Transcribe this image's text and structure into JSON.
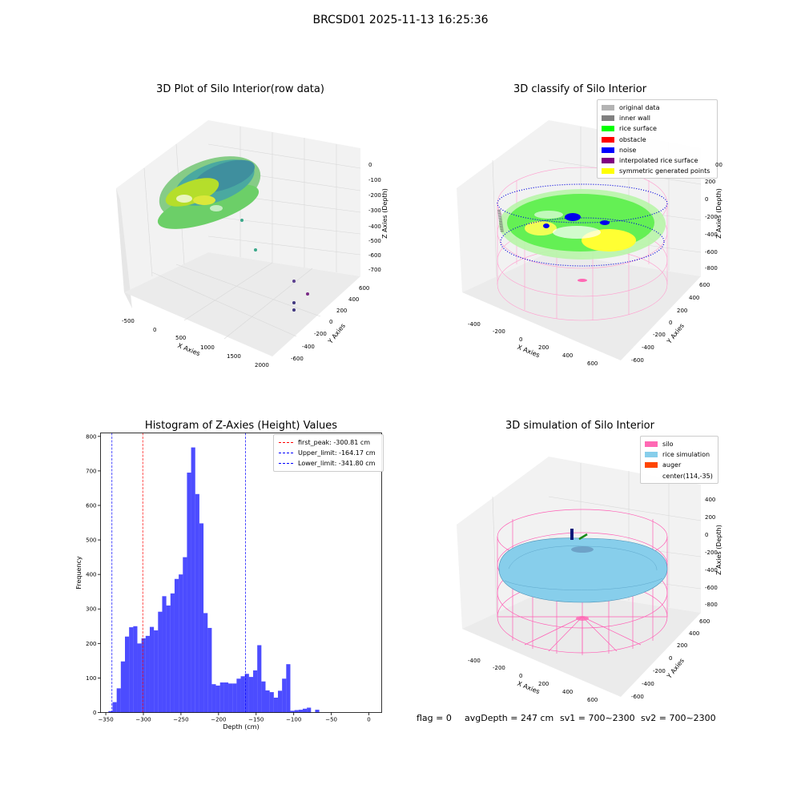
{
  "page": {
    "title": "BRCSD01 2025-11-13 16:25:36"
  },
  "panel1": {
    "title": "3D Plot of Silo Interior(row data)",
    "x_ticks": [
      "-500",
      "0",
      "500",
      "1000",
      "1500",
      "2000"
    ],
    "y_ticks": [
      "-600",
      "-400",
      "-200",
      "0",
      "200",
      "400",
      "600"
    ],
    "z_ticks": [
      "0",
      "-100",
      "-200",
      "-300",
      "-400",
      "-500",
      "-600",
      "-700"
    ],
    "x_label": "X Axies",
    "y_label": "Y Axies",
    "z_label": "Z Axies (Depth)"
  },
  "panel2": {
    "title": "3D classify of Silo Interior",
    "legend": [
      {
        "label": "original data",
        "color": "#b3b3b3"
      },
      {
        "label": "inner wall",
        "color": "#808080"
      },
      {
        "label": "rice surface",
        "color": "#00ff00"
      },
      {
        "label": "obstacle",
        "color": "#ff0000"
      },
      {
        "label": "noise",
        "color": "#0000ff"
      },
      {
        "label": "interpolated rice surface",
        "color": "#800080"
      },
      {
        "label": "symmetric generated points",
        "color": "#ffff00"
      }
    ],
    "x_ticks": [
      "-400",
      "-200",
      "0",
      "200",
      "400",
      "600"
    ],
    "y_ticks": [
      "-600",
      "-400",
      "-200",
      "0",
      "200",
      "400",
      "600"
    ],
    "z_ticks": [
      "200",
      "0",
      "-200",
      "-400",
      "-600",
      "-800"
    ],
    "z_top_partial": "00",
    "x_label": "X Axies",
    "y_label": "Y Axies",
    "z_label": "Z Axies (Depth)"
  },
  "panel3": {
    "title": "Histogram of Z-Axies (Height) Values",
    "legend": [
      {
        "label": "first_peak: -300.81 cm",
        "color": "#ff0000"
      },
      {
        "label": "Upper_limit: -164.17 cm",
        "color": "#0000ff"
      },
      {
        "label": "Lower_limit: -341.80 cm",
        "color": "#0000ff"
      }
    ]
  },
  "panel4": {
    "title": "3D simulation of Silo Interior",
    "legend": [
      {
        "label": "silo",
        "color": "#ff69b4"
      },
      {
        "label": "rice simulation",
        "color": "#87ceeb"
      },
      {
        "label": "auger",
        "color": "#ff4500"
      },
      {
        "label": "center(114,-35)",
        "color": ""
      }
    ],
    "x_ticks": [
      "-400",
      "-200",
      "0",
      "200",
      "400",
      "600"
    ],
    "y_ticks": [
      "-600",
      "-400",
      "-200",
      "0",
      "200",
      "400",
      "600"
    ],
    "z_ticks": [
      "400",
      "200",
      "0",
      "-200",
      "-400",
      "-600",
      "-800"
    ],
    "x_label": "X Axies",
    "y_label": "Y Axies",
    "z_label": "Z Axies (Depth)"
  },
  "status": {
    "flag": "flag = 0",
    "avg_depth": "avgDepth = 247 cm",
    "sv1": "sv1 = 700~2300",
    "sv2": "sv2 = 700~2300"
  },
  "chart_data": [
    {
      "type": "scatter",
      "title": "3D Plot of Silo Interior(row data)",
      "xlabel": "X Axies",
      "ylabel": "Y Axies",
      "zlabel": "Z Axies (Depth)",
      "xlim": [
        -600,
        2100
      ],
      "ylim": [
        -650,
        650
      ],
      "zlim": [
        -720,
        20
      ]
    },
    {
      "type": "scatter",
      "title": "3D classify of Silo Interior",
      "xlabel": "X Axies",
      "ylabel": "Y Axies",
      "zlabel": "Z Axies (Depth)",
      "xlim": [
        -500,
        700
      ],
      "ylim": [
        -650,
        650
      ],
      "zlim": [
        -900,
        300
      ],
      "series": [
        {
          "name": "original data",
          "color": "#b3b3b3"
        },
        {
          "name": "inner wall",
          "color": "#808080"
        },
        {
          "name": "rice surface",
          "color": "#00ff00"
        },
        {
          "name": "obstacle",
          "color": "#ff0000"
        },
        {
          "name": "noise",
          "color": "#0000ff"
        },
        {
          "name": "interpolated rice surface",
          "color": "#800080"
        },
        {
          "name": "symmetric generated points",
          "color": "#ffff00"
        }
      ]
    },
    {
      "type": "bar",
      "title": "Histogram of Z-Axies (Height) Values",
      "xlabel": "Depth (cm)",
      "ylabel": "Frequency",
      "xlim": [
        -357,
        17
      ],
      "ylim": [
        0,
        810
      ],
      "x_ticks": [
        -350,
        -300,
        -250,
        -200,
        -150,
        -100,
        -50,
        0
      ],
      "y_ticks": [
        0,
        100,
        200,
        300,
        400,
        500,
        600,
        700,
        800
      ],
      "bar_color": "#0000ff",
      "bin_width": 5.5,
      "bin_start": -346.5,
      "values": [
        4,
        30,
        70,
        148,
        220,
        247,
        250,
        200,
        215,
        222,
        248,
        238,
        292,
        337,
        310,
        345,
        387,
        400,
        450,
        695,
        768,
        633,
        548,
        288,
        245,
        82,
        78,
        87,
        87,
        84,
        84,
        98,
        105,
        112,
        103,
        122,
        195,
        90,
        64,
        59,
        43,
        63,
        98,
        140,
        5,
        7,
        8,
        11,
        14,
        0,
        8
      ],
      "vlines": [
        {
          "label": "first_peak: -300.81 cm",
          "x": -300.81,
          "color": "#ff0000"
        },
        {
          "label": "Upper_limit: -164.17 cm",
          "x": -164.17,
          "color": "#0000ff"
        },
        {
          "label": "Lower_limit: -341.80 cm",
          "x": -341.8,
          "color": "#0000ff"
        }
      ]
    },
    {
      "type": "area",
      "title": "3D simulation of Silo Interior",
      "xlabel": "X Axies",
      "ylabel": "Y Axies",
      "zlabel": "Z Axies (Depth)",
      "xlim": [
        -500,
        700
      ],
      "ylim": [
        -650,
        650
      ],
      "zlim": [
        -900,
        450
      ],
      "series": [
        {
          "name": "silo",
          "color": "#ff69b4"
        },
        {
          "name": "rice simulation",
          "color": "#87ceeb"
        },
        {
          "name": "auger",
          "color": "#ff4500"
        },
        {
          "name": "center(114,-35)"
        }
      ]
    }
  ]
}
